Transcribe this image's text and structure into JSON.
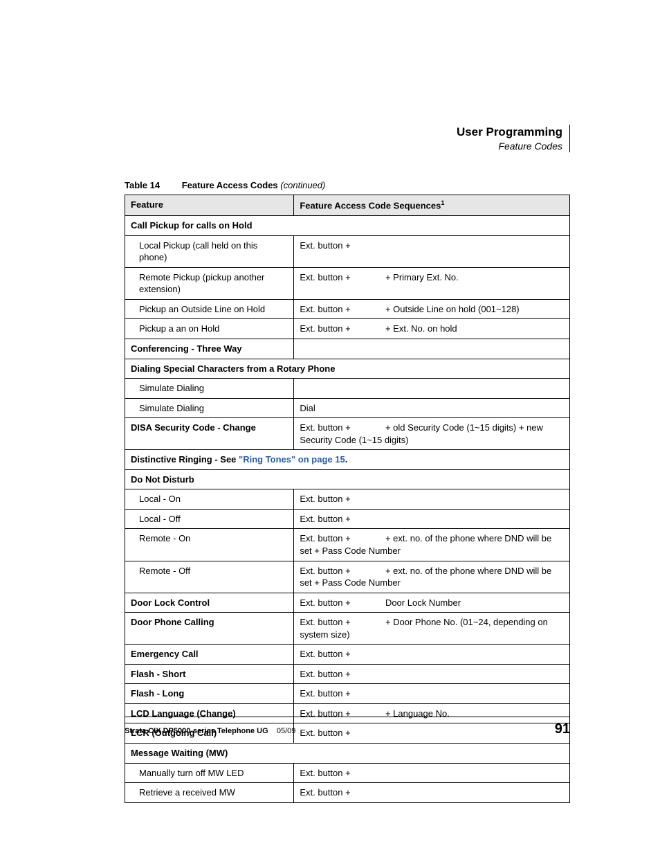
{
  "header": {
    "title": "User Programming",
    "subtitle": "Feature Codes"
  },
  "caption": {
    "number": "Table 14",
    "title": "Feature Access Codes",
    "continued": "(continued)"
  },
  "columns": {
    "feature": "Feature",
    "sequence": "Feature Access Code Sequences",
    "sup": "1"
  },
  "rows": [
    {
      "type": "section",
      "text": "Call Pickup for calls on Hold"
    },
    {
      "type": "item",
      "feature": "Local Pickup (call held on this phone)",
      "seq_full": "Ext. button +"
    },
    {
      "type": "item",
      "feature": "Remote Pickup (pickup another extension)",
      "seq_prefix": "Ext. button +",
      "seq_rest": "+ Primary Ext. No."
    },
    {
      "type": "item",
      "feature": "Pickup an Outside Line on Hold",
      "seq_prefix": "Ext. button +",
      "seq_rest": "+ Outside Line on hold (001~128)"
    },
    {
      "type": "item",
      "feature": "Pickup a an on Hold",
      "seq_prefix": "Ext. button +",
      "seq_rest": "+ Ext. No. on hold"
    },
    {
      "type": "bold_empty",
      "feature": "Conferencing - Three Way"
    },
    {
      "type": "section",
      "text": "Dialing Special Characters from a Rotary Phone"
    },
    {
      "type": "item_empty",
      "feature": "Simulate Dialing"
    },
    {
      "type": "item",
      "feature": "Simulate Dialing",
      "seq_full": "Dial"
    },
    {
      "type": "bold_item",
      "feature": "DISA Security Code - Change",
      "seq_prefix": "Ext. button +",
      "seq_rest": "+ old Security Code (1~15 digits) + new Security Code (1~15 digits)"
    },
    {
      "type": "section_link",
      "pre": "Distinctive Ringing - See ",
      "link": "\"Ring Tones\" on page 15",
      "post": "."
    },
    {
      "type": "section",
      "text": "Do Not Disturb"
    },
    {
      "type": "item",
      "feature": "Local - On",
      "seq_full": "Ext. button +"
    },
    {
      "type": "item",
      "feature": "Local - Off",
      "seq_full": "Ext. button +"
    },
    {
      "type": "item",
      "feature": "Remote - On",
      "seq_prefix": "Ext. button +",
      "seq_rest": "+ ext. no. of the phone where DND will be set + Pass Code Number"
    },
    {
      "type": "item",
      "feature": "Remote - Off",
      "seq_prefix": "Ext. button +",
      "seq_rest": "+ ext. no. of the phone where DND will be set + Pass Code Number"
    },
    {
      "type": "bold_item",
      "feature": "Door Lock Control",
      "seq_prefix": "Ext. button +",
      "seq_rest": "Door Lock Number"
    },
    {
      "type": "bold_item",
      "feature": "Door Phone Calling",
      "seq_prefix": "Ext. button +",
      "seq_rest": "+ Door Phone No. (01~24, depending on system size)"
    },
    {
      "type": "bold_item",
      "feature": "Emergency Call",
      "seq_full": "Ext. button +"
    },
    {
      "type": "bold_item",
      "feature": "Flash - Short",
      "seq_full": "Ext. button +"
    },
    {
      "type": "bold_item",
      "feature": "Flash - Long",
      "seq_full": "Ext. button +"
    },
    {
      "type": "bold_item",
      "feature": "LCD Language (Change)",
      "seq_prefix": "Ext. button +",
      "seq_rest": "+ Language No."
    },
    {
      "type": "bold_item",
      "feature": "LCR (Outgoing Call)",
      "seq_full": "Ext. button +"
    },
    {
      "type": "section",
      "text": "Message Waiting (MW)"
    },
    {
      "type": "item",
      "feature": "Manually turn off MW LED",
      "seq_full": "Ext. button +"
    },
    {
      "type": "item",
      "feature": "Retrieve a received MW",
      "seq_full": "Ext. button +"
    }
  ],
  "footer": {
    "doc": "Strata CIX DP5000-series Telephone UG",
    "date": "05/09",
    "page": "91"
  }
}
